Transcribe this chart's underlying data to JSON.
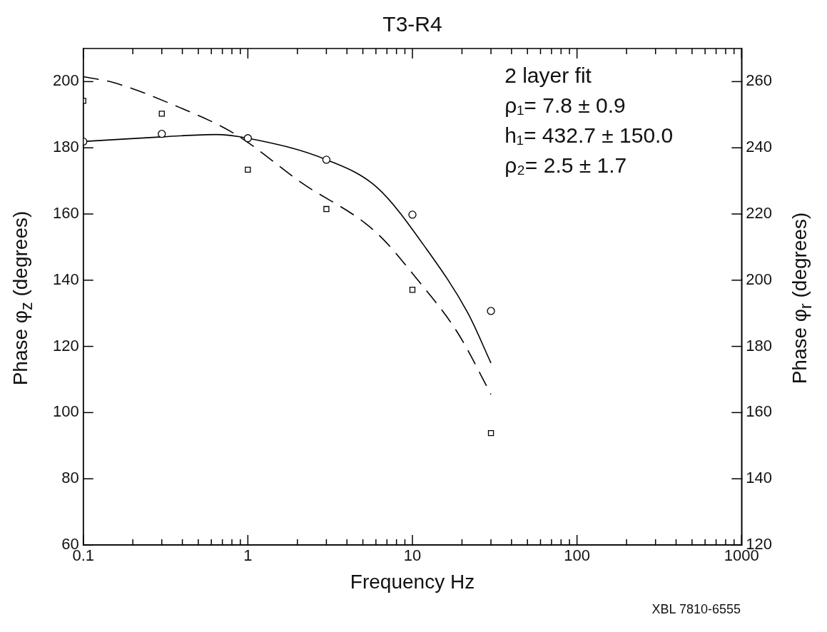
{
  "chart_data": {
    "type": "scatter",
    "title": "T3-R4",
    "xlabel": "Frequency Hz",
    "ylabel": "Phase φ$_{z}$ (degrees)",
    "y2label": "Phase φ$_{r}$ (degrees)",
    "annotations": [
      "2 layer fit",
      "ρ₁= 7.8 ± 0.9",
      "h₁= 432.7 ± 150.0",
      "ρ₂= 2.5 ± 1.7",
      "XBL 7810-6555"
    ],
    "log": "x",
    "grid": false,
    "legend": false,
    "xlim": [
      0.1,
      1000
    ],
    "xticks": [
      {
        "value": 0.1,
        "label": "0.1"
      },
      {
        "value": 0.2,
        "label": null
      },
      {
        "value": 0.3,
        "label": null
      },
      {
        "value": 0.4,
        "label": null
      },
      {
        "value": 0.5,
        "label": null
      },
      {
        "value": 0.6,
        "label": null
      },
      {
        "value": 0.7,
        "label": null
      },
      {
        "value": 0.8,
        "label": null
      },
      {
        "value": 0.9,
        "label": null
      },
      1,
      {
        "value": 2,
        "label": null
      },
      {
        "value": 3,
        "label": null
      },
      {
        "value": 4,
        "label": null
      },
      {
        "value": 5,
        "label": null
      },
      {
        "value": 6,
        "label": null
      },
      {
        "value": 7,
        "label": null
      },
      {
        "value": 8,
        "label": null
      },
      {
        "value": 9,
        "label": null
      },
      10,
      {
        "value": 20,
        "label": null
      },
      {
        "value": 30,
        "label": null
      },
      {
        "value": 40,
        "label": null
      },
      {
        "value": 50,
        "label": null
      },
      {
        "value": 60,
        "label": null
      },
      {
        "value": 70,
        "label": null
      },
      {
        "value": 80,
        "label": null
      },
      {
        "value": 90,
        "label": null
      },
      100,
      {
        "value": 200,
        "label": null
      },
      {
        "value": 300,
        "label": null
      },
      {
        "value": 400,
        "label": null
      },
      {
        "value": 500,
        "label": null
      },
      {
        "value": 600,
        "label": null
      },
      {
        "value": 700,
        "label": null
      },
      {
        "value": 800,
        "label": null
      },
      {
        "value": 900,
        "label": null
      },
      1000
    ],
    "ylim": [
      60,
      210
    ],
    "yticks": [
      60,
      80,
      100,
      120,
      140,
      160,
      180,
      200
    ],
    "y2lim": [
      120,
      270
    ],
    "y2ticks": [
      120,
      140,
      160,
      180,
      200,
      220,
      240,
      260
    ],
    "series": [
      {
        "type": "scatter",
        "marker": "circle",
        "color": "#000000",
        "x": [
          0.1,
          0.3,
          1,
          3,
          10,
          30
        ],
        "values": [
          181.9,
          184.2,
          182.9,
          176.4,
          159.8,
          130.7
        ]
      },
      {
        "type": "scatter",
        "marker": "square",
        "color": "#000000",
        "x": [
          0.1,
          0.3,
          1,
          3,
          10,
          30
        ],
        "values": [
          194.2,
          190.3,
          173.4,
          161.5,
          137.1,
          93.8
        ]
      },
      {
        "type": "line",
        "marker": "none",
        "line_style": "solid",
        "color": "#000000",
        "x": [
          0.1,
          0.3,
          0.64,
          1,
          3,
          6.1,
          12.3,
          21.7,
          30
        ],
        "values": [
          181.9,
          183.3,
          184.0,
          182.9,
          176.4,
          168.0,
          149.1,
          130.1,
          115.0
        ]
      },
      {
        "type": "line",
        "marker": "none",
        "line_style": "dashed",
        "color": "#000000",
        "x": [
          0.1,
          0.153,
          0.34,
          0.84,
          2.11,
          5.94,
          10.8,
          19.0,
          30
        ],
        "values": [
          201.5,
          199.7,
          193.3,
          184.1,
          169.5,
          154.7,
          140.0,
          123.8,
          105.5
        ]
      }
    ]
  }
}
